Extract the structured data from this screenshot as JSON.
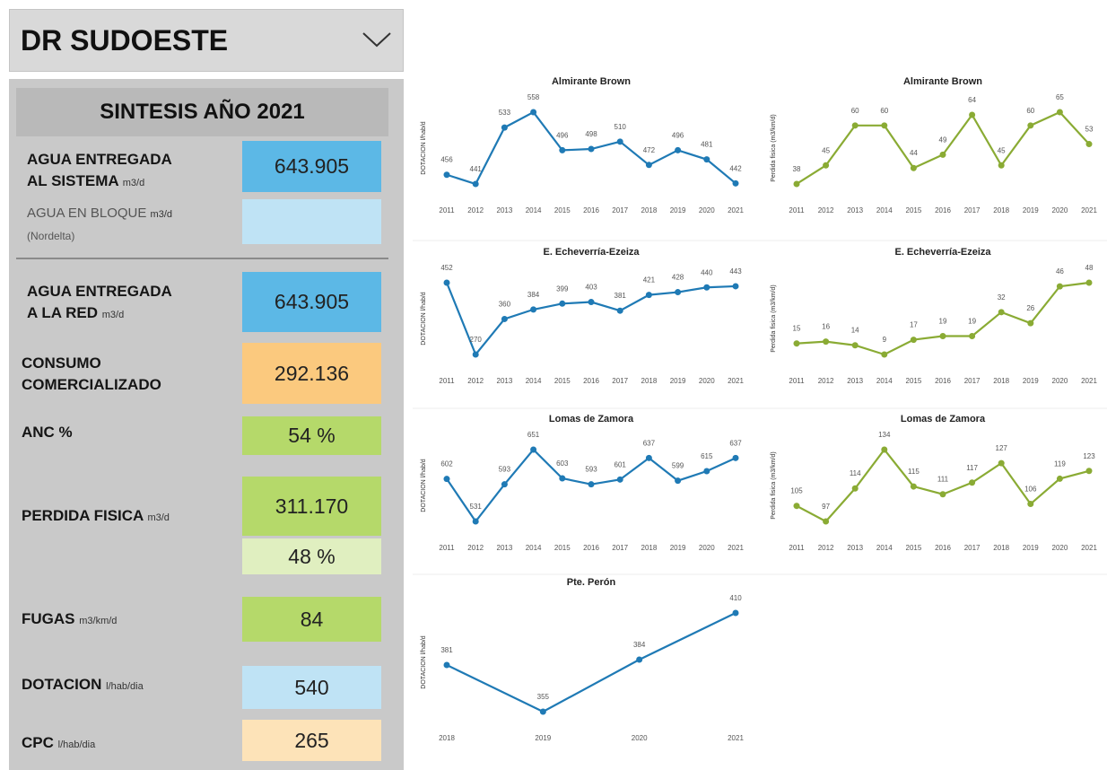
{
  "header": {
    "title": "DR SUDOESTE"
  },
  "summary": {
    "title": "SINTESIS AÑO 2021",
    "rows": [
      {
        "label": [
          "AGUA ENTREGADA",
          "AL SISTEMA"
        ],
        "unit": "m3/d",
        "value": "643.905"
      },
      {
        "label": [
          "AGUA EN BLOQUE"
        ],
        "unit": "m3/d",
        "note": "(Nordelta)"
      },
      {
        "label": [
          "AGUA ENTREGADA",
          "A LA RED"
        ],
        "unit": "m3/d",
        "value": "643.905"
      },
      {
        "label": [
          "CONSUMO",
          "COMERCIALIZADO"
        ],
        "value": "292.136"
      },
      {
        "label": [
          "ANC %"
        ],
        "value": "54 %"
      },
      {
        "label": [
          "PERDIDA FISICA"
        ],
        "unit": "m3/d",
        "value": "311.170",
        "value2": "48 %"
      },
      {
        "label": [
          "FUGAS"
        ],
        "unit": "m3/km/d",
        "value": "84"
      },
      {
        "label": [
          "DOTACION"
        ],
        "unit": "l/hab/dia",
        "value": "540"
      },
      {
        "label": [
          "CPC"
        ],
        "unit": "l/hab/dia",
        "value": "265"
      }
    ]
  },
  "chart_data": [
    {
      "type": "line",
      "title": "Almirante Brown",
      "y_label": "DOTACION l/hab/d",
      "categories": [
        "2011",
        "2012",
        "2013",
        "2014",
        "2015",
        "2016",
        "2017",
        "2018",
        "2019",
        "2020",
        "2021"
      ],
      "series": [
        {
          "color": "#1f7ab5",
          "values": [
            456,
            441,
            533,
            558,
            496,
            498,
            510,
            472,
            496,
            481,
            442
          ]
        }
      ]
    },
    {
      "type": "line",
      "title": "Almirante Brown",
      "y_label": "Perdida fisica (m3/km/d)",
      "categories": [
        "2011",
        "2012",
        "2013",
        "2014",
        "2015",
        "2016",
        "2017",
        "2018",
        "2019",
        "2020",
        "2021"
      ],
      "series": [
        {
          "color": "#8aab34",
          "values": [
            38,
            45,
            60,
            60,
            44,
            49,
            64,
            45,
            60,
            65,
            53
          ]
        }
      ]
    },
    {
      "type": "line",
      "title": "E. Echeverría-Ezeiza",
      "y_label": "DOTACION l/hab/d",
      "categories": [
        "2011",
        "2012",
        "2013",
        "2014",
        "2015",
        "2016",
        "2017",
        "2018",
        "2019",
        "2020",
        "2021"
      ],
      "series": [
        {
          "color": "#1f7ab5",
          "values": [
            452,
            270,
            360,
            384,
            399,
            403,
            381,
            421,
            428,
            440,
            443
          ]
        }
      ]
    },
    {
      "type": "line",
      "title": "E. Echeverría-Ezeiza",
      "y_label": "Perdida fisica (m3/km/d)",
      "categories": [
        "2011",
        "2012",
        "2013",
        "2014",
        "2015",
        "2016",
        "2017",
        "2018",
        "2019",
        "2020",
        "2021"
      ],
      "series": [
        {
          "color": "#8aab34",
          "values": [
            15,
            16,
            14,
            9,
            17,
            19,
            19,
            32,
            26,
            46,
            48
          ]
        }
      ]
    },
    {
      "type": "line",
      "title": "Lomas de Zamora",
      "y_label": "DOTACION l/hab/d",
      "categories": [
        "2011",
        "2012",
        "2013",
        "2014",
        "2015",
        "2016",
        "2017",
        "2018",
        "2019",
        "2020",
        "2021"
      ],
      "series": [
        {
          "color": "#1f7ab5",
          "values": [
            602,
            531,
            593,
            651,
            603,
            593,
            601,
            637,
            599,
            615,
            637
          ]
        }
      ]
    },
    {
      "type": "line",
      "title": "Lomas de Zamora",
      "y_label": "Perdida fisica (m3/km/d)",
      "categories": [
        "2011",
        "2012",
        "2013",
        "2014",
        "2015",
        "2016",
        "2017",
        "2018",
        "2019",
        "2020",
        "2021"
      ],
      "series": [
        {
          "color": "#8aab34",
          "values": [
            105,
            97,
            114,
            134,
            115,
            111,
            117,
            127,
            106,
            119,
            123
          ]
        }
      ]
    },
    {
      "type": "line",
      "title": "Pte. Perón",
      "y_label": "DOTACION l/hab/d",
      "categories": [
        "2018",
        "2019",
        "2020",
        "2021"
      ],
      "series": [
        {
          "color": "#1f7ab5",
          "values": [
            381,
            355,
            384,
            410
          ]
        }
      ]
    }
  ]
}
